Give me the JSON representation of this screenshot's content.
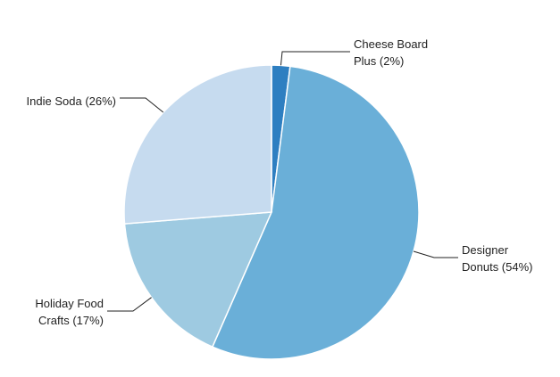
{
  "chart_data": {
    "type": "pie",
    "title": "",
    "slices": [
      {
        "label_lines": [
          "Cheese Board",
          "Plus (2%)"
        ],
        "value": 2,
        "color": "#2e7fc1"
      },
      {
        "label_lines": [
          "Designer",
          "Donuts (54%)"
        ],
        "value": 54,
        "color": "#6aafd8"
      },
      {
        "label_lines": [
          "Holiday Food",
          "Crafts (17%)"
        ],
        "value": 17,
        "color": "#9ecae1"
      },
      {
        "label_lines": [
          "Indie Soda (26%)"
        ],
        "value": 26,
        "color": "#c6dbef"
      }
    ],
    "start_angle_deg": 0,
    "direction": "clockwise"
  }
}
